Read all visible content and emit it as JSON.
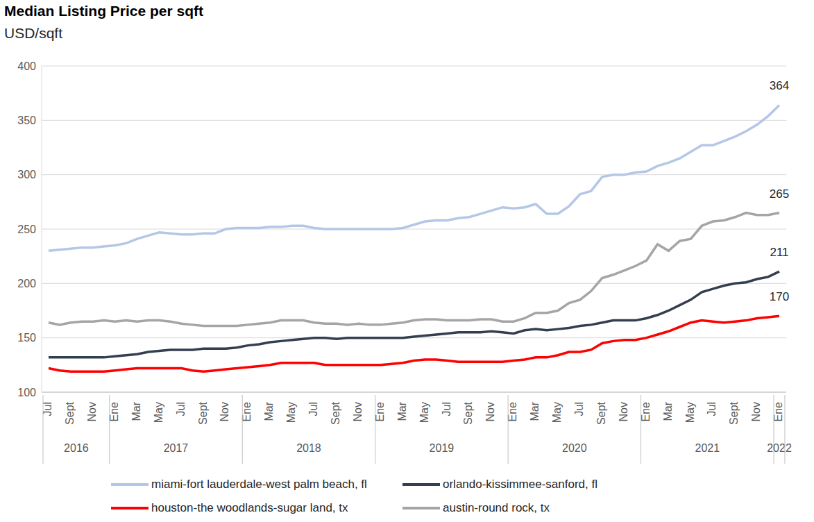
{
  "chart_data": {
    "type": "line",
    "title": "Median Listing Price per sqft",
    "subtitle": "USD/sqft",
    "categories": [
      "Jul",
      null,
      "Sept",
      null,
      "Nov",
      null,
      "Ene",
      null,
      "Mar",
      null,
      "May",
      null,
      "Jul",
      null,
      "Sept",
      null,
      "Nov",
      null,
      "Ene",
      null,
      "Mar",
      null,
      "May",
      null,
      "Jul",
      null,
      "Sept",
      null,
      "Nov",
      null,
      "Ene",
      null,
      "Mar",
      null,
      "May",
      null,
      "Jul",
      null,
      "Sept",
      null,
      "Nov",
      null,
      "Ene",
      null,
      "Mar",
      null,
      "May",
      null,
      "Jul",
      null,
      "Sept",
      null,
      "Nov",
      null,
      "Ene",
      null,
      "Mar",
      null,
      "May",
      null,
      "Jul",
      null,
      "Sept",
      null,
      "Nov",
      null,
      "Ene"
    ],
    "year_groups": [
      {
        "label": "2016",
        "count": 6
      },
      {
        "label": "2017",
        "count": 12
      },
      {
        "label": "2018",
        "count": 12
      },
      {
        "label": "2019",
        "count": 12
      },
      {
        "label": "2020",
        "count": 12
      },
      {
        "label": "2021",
        "count": 12
      },
      {
        "label": "2022",
        "count": 1
      }
    ],
    "series": [
      {
        "name": "miami-fort lauderdale-west palm beach, fl",
        "color": "#b4c7e7",
        "values": [
          230,
          231,
          232,
          233,
          233,
          234,
          235,
          237,
          241,
          244,
          247,
          246,
          245,
          245,
          246,
          246,
          250,
          251,
          251,
          251,
          252,
          252,
          253,
          253,
          251,
          250,
          250,
          250,
          250,
          250,
          250,
          250,
          251,
          254,
          257,
          258,
          258,
          260,
          261,
          264,
          267,
          270,
          269,
          270,
          273,
          264,
          264,
          271,
          282,
          285,
          298,
          300,
          300,
          302,
          303,
          308,
          311,
          315,
          321,
          327,
          327,
          331,
          335,
          340,
          346,
          354,
          364
        ]
      },
      {
        "name": "orlando-kissimmee-sanford, fl",
        "color": "#333f50",
        "values": [
          132,
          132,
          132,
          132,
          132,
          132,
          133,
          134,
          135,
          137,
          138,
          139,
          139,
          139,
          140,
          140,
          140,
          141,
          143,
          144,
          146,
          147,
          148,
          149,
          150,
          150,
          149,
          150,
          150,
          150,
          150,
          150,
          150,
          151,
          152,
          153,
          154,
          155,
          155,
          155,
          156,
          155,
          154,
          157,
          158,
          157,
          158,
          159,
          161,
          162,
          164,
          166,
          166,
          166,
          168,
          171,
          175,
          180,
          185,
          192,
          195,
          198,
          200,
          201,
          204,
          206,
          211
        ]
      },
      {
        "name": "houston-the woodlands-sugar land, tx",
        "color": "#ff0000",
        "values": [
          122,
          120,
          119,
          119,
          119,
          119,
          120,
          121,
          122,
          122,
          122,
          122,
          122,
          120,
          119,
          120,
          121,
          122,
          123,
          124,
          125,
          127,
          127,
          127,
          127,
          125,
          125,
          125,
          125,
          125,
          125,
          126,
          127,
          129,
          130,
          130,
          129,
          128,
          128,
          128,
          128,
          128,
          129,
          130,
          132,
          132,
          134,
          137,
          137,
          139,
          145,
          147,
          148,
          148,
          150,
          153,
          156,
          160,
          164,
          166,
          165,
          164,
          165,
          166,
          168,
          169,
          170
        ]
      },
      {
        "name": "austin-round rock, tx",
        "color": "#a5a5a5",
        "values": [
          164,
          162,
          164,
          165,
          165,
          166,
          165,
          166,
          165,
          166,
          166,
          165,
          163,
          162,
          161,
          161,
          161,
          161,
          162,
          163,
          164,
          166,
          166,
          166,
          164,
          163,
          163,
          162,
          163,
          162,
          162,
          163,
          164,
          166,
          167,
          167,
          166,
          166,
          166,
          167,
          167,
          165,
          165,
          168,
          173,
          173,
          175,
          182,
          185,
          193,
          205,
          208,
          212,
          216,
          221,
          236,
          230,
          239,
          241,
          253,
          257,
          258,
          261,
          265,
          263,
          263,
          265
        ]
      }
    ],
    "annotations": [
      {
        "series": "miami-fort lauderdale-west palm beach, fl",
        "text": "364"
      },
      {
        "series": "austin-round rock, tx",
        "text": "265"
      },
      {
        "series": "orlando-kissimmee-sanford, fl",
        "text": "211"
      },
      {
        "series": "houston-the woodlands-sugar land, tx",
        "text": "170"
      }
    ],
    "ylim": [
      100,
      400
    ],
    "yticks": [
      100,
      150,
      200,
      250,
      300,
      350,
      400
    ],
    "grid": true,
    "legend": "bottom"
  }
}
